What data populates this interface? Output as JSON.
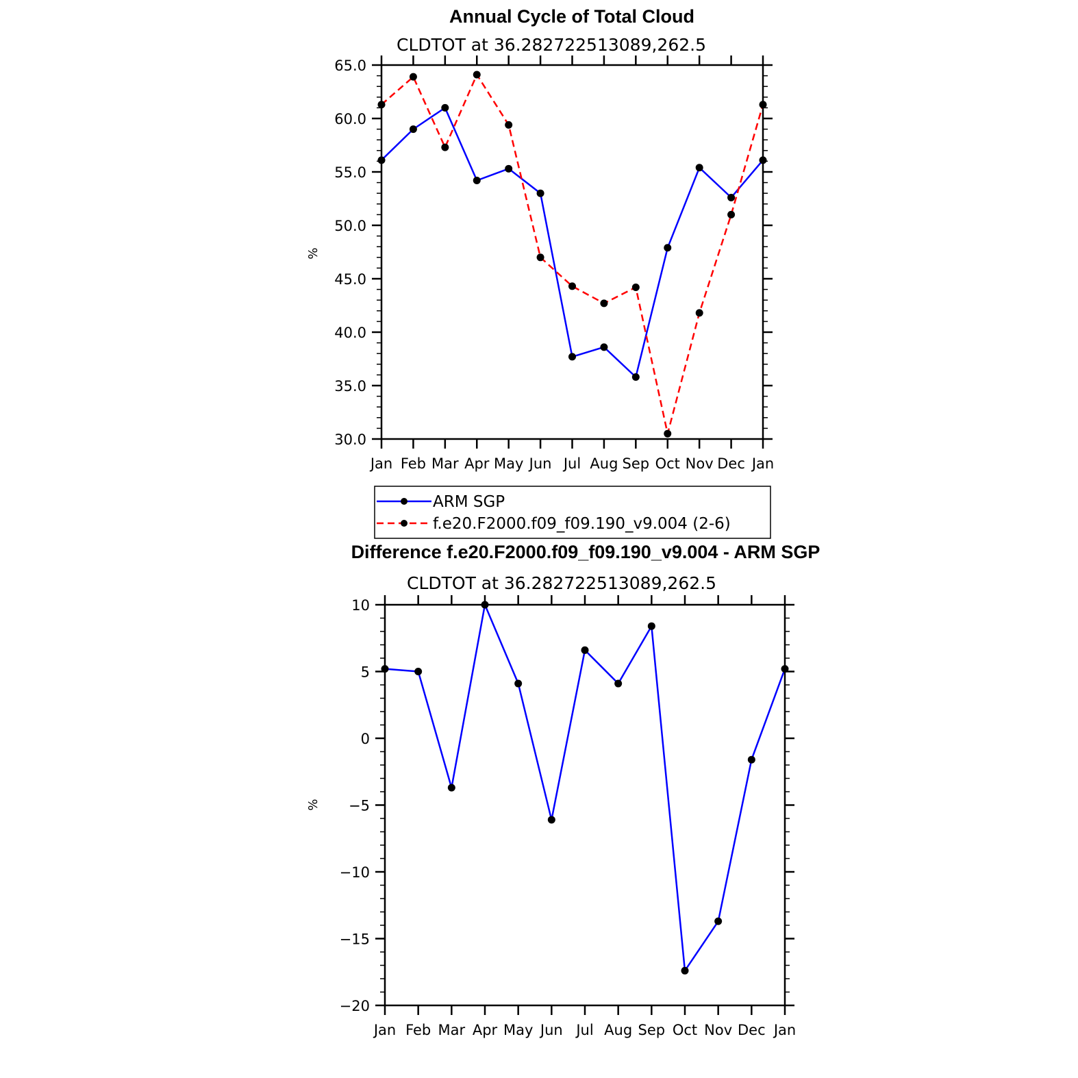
{
  "chart_data": [
    {
      "type": "line",
      "title": "Annual Cycle of Total Cloud",
      "subtitle": "CLDTOT at 36.282722513089,262.5",
      "ylabel": "%",
      "xlabel": "",
      "ylim": [
        30.0,
        65.0
      ],
      "yticks": [
        "30.0",
        "35.0",
        "40.0",
        "45.0",
        "50.0",
        "55.0",
        "60.0",
        "65.0"
      ],
      "categories": [
        "Jan",
        "Feb",
        "Mar",
        "Apr",
        "May",
        "Jun",
        "Jul",
        "Aug",
        "Sep",
        "Oct",
        "Nov",
        "Dec",
        "Jan"
      ],
      "legend_position": "below",
      "series": [
        {
          "name": "ARM SGP",
          "color": "#0000ff",
          "style": "solid",
          "marker": "circle",
          "values": [
            56.1,
            59.0,
            61.0,
            54.2,
            55.3,
            53.0,
            37.7,
            38.6,
            35.8,
            47.9,
            55.4,
            52.6,
            56.1
          ]
        },
        {
          "name": "f.e20.F2000.f09_f09.190_v9.004 (2-6)",
          "color": "#ff0000",
          "style": "dashed",
          "marker": "circle",
          "values": [
            61.3,
            63.9,
            57.3,
            64.1,
            59.4,
            47.0,
            44.3,
            42.7,
            44.2,
            30.5,
            41.8,
            51.0,
            61.3
          ]
        }
      ]
    },
    {
      "type": "line",
      "title": "Difference f.e20.F2000.f09_f09.190_v9.004 - ARM SGP",
      "subtitle": "CLDTOT at 36.282722513089,262.5",
      "ylabel": "%",
      "xlabel": "",
      "ylim": [
        -20,
        10
      ],
      "yticks": [
        "−20",
        "−15",
        "−10",
        "−5",
        "0",
        "5",
        "10"
      ],
      "categories": [
        "Jan",
        "Feb",
        "Mar",
        "Apr",
        "May",
        "Jun",
        "Jul",
        "Aug",
        "Sep",
        "Oct",
        "Nov",
        "Dec",
        "Jan"
      ],
      "series": [
        {
          "color": "#0000ff",
          "style": "solid",
          "marker": "circle",
          "values": [
            5.2,
            5.0,
            -3.7,
            10.0,
            4.1,
            -6.1,
            6.6,
            4.1,
            8.4,
            -17.4,
            -13.7,
            -1.6,
            5.2
          ]
        }
      ]
    }
  ]
}
